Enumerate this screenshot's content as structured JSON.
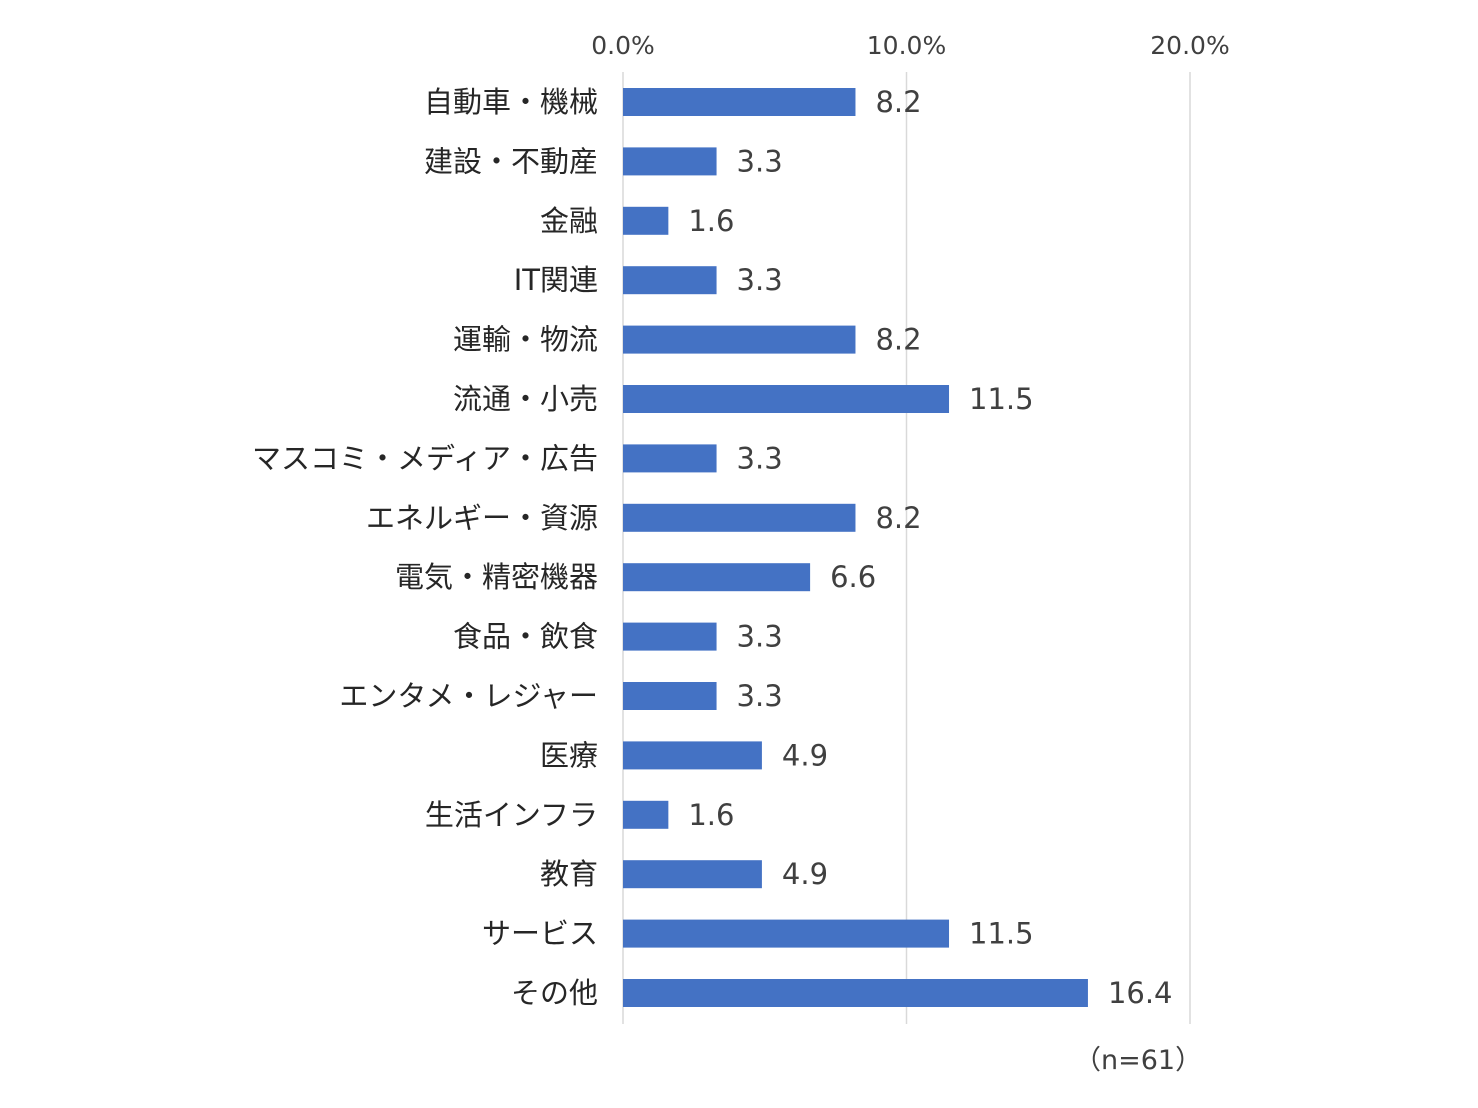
{
  "chart_data": {
    "type": "bar",
    "orientation": "horizontal",
    "categories": [
      "自動車・機械",
      "建設・不動産",
      "金融",
      "IT関連",
      "運輸・物流",
      "流通・小売",
      "マスコミ・メディア・広告",
      "エネルギー・資源",
      "電気・精密機器",
      "食品・飲食",
      "エンタメ・レジャー",
      "医療",
      "生活インフラ",
      "教育",
      "サービス",
      "その他"
    ],
    "values": [
      8.2,
      3.3,
      1.6,
      3.3,
      8.2,
      11.5,
      3.3,
      8.2,
      6.6,
      3.3,
      3.3,
      4.9,
      1.6,
      4.9,
      11.5,
      16.4
    ],
    "value_labels": [
      "8.2",
      "3.3",
      "1.6",
      "3.3",
      "8.2",
      "11.5",
      "3.3",
      "8.2",
      "6.6",
      "3.3",
      "3.3",
      "4.9",
      "1.6",
      "4.9",
      "11.5",
      "16.4"
    ],
    "x_ticks": [
      0,
      10,
      20
    ],
    "x_tick_labels": [
      "0.0%",
      "10.0%",
      "20.0%"
    ],
    "xlim": [
      0,
      20
    ],
    "axis_position": "top",
    "grid": true,
    "bar_color": "#4472C4",
    "grid_color": "#D9D9D9",
    "note": "（n=61）"
  }
}
